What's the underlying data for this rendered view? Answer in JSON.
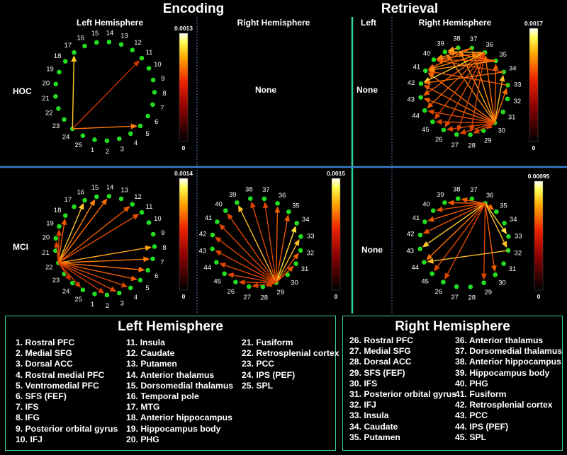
{
  "headers": {
    "encoding": "Encoding",
    "retrieval": "Retrieval"
  },
  "subheaders": {
    "enc_left": "Left Hemisphere",
    "enc_right": "Right Hemisphere",
    "ret_left": "Left",
    "ret_right": "Right Hemisphere"
  },
  "rows": {
    "hoc": "HOC",
    "mci": "MCI"
  },
  "none_label": "None",
  "colors": {
    "node": "#22dd22",
    "divider_v": "#2fd6a0",
    "divider_h": "#3a7fd0",
    "dotted": "#4a6aa0",
    "arrow_low": "#cc1100",
    "arrow_mid": "#ff6600",
    "arrow_high": "#ffee33"
  },
  "node_labels_left": [
    "1",
    "2",
    "3",
    "4",
    "5",
    "6",
    "7",
    "8",
    "9",
    "10",
    "11",
    "12",
    "13",
    "14",
    "15",
    "16",
    "17",
    "18",
    "19",
    "20",
    "21",
    "22",
    "23",
    "24",
    "25"
  ],
  "node_labels_right": [
    "26",
    "27",
    "28",
    "29",
    "30",
    "31",
    "32",
    "33",
    "34",
    "35",
    "36",
    "37",
    "38",
    "39",
    "40",
    "41",
    "42",
    "43",
    "44",
    "45"
  ],
  "colorbars": [
    {
      "max": "0.0013",
      "min": "0"
    },
    {
      "max": "0.0017",
      "min": "0"
    },
    {
      "max": "0.0014",
      "min": "0"
    },
    {
      "max": "0.0015",
      "min": "0"
    },
    {
      "max": "0.00095",
      "min": "0"
    }
  ],
  "connections": {
    "hoc_enc_left": [
      [
        24,
        17,
        0.85
      ],
      [
        24,
        11,
        0.2
      ],
      [
        24,
        5,
        0.55
      ]
    ],
    "hoc_ret_right": [
      [
        30,
        39,
        0.6
      ],
      [
        30,
        38,
        0.7
      ],
      [
        30,
        41,
        0.5
      ],
      [
        30,
        42,
        0.4
      ],
      [
        30,
        43,
        0.4
      ],
      [
        30,
        44,
        0.3
      ],
      [
        30,
        45,
        0.3
      ],
      [
        30,
        26,
        0.3
      ],
      [
        30,
        27,
        0.3
      ],
      [
        30,
        28,
        0.3
      ],
      [
        30,
        29,
        0.3
      ],
      [
        30,
        37,
        0.6
      ],
      [
        30,
        36,
        0.5
      ],
      [
        30,
        35,
        0.4
      ],
      [
        30,
        34,
        0.8
      ],
      [
        30,
        33,
        0.5
      ],
      [
        36,
        39,
        0.8
      ],
      [
        36,
        40,
        0.5
      ],
      [
        36,
        41,
        0.6
      ],
      [
        36,
        42,
        0.9
      ],
      [
        36,
        43,
        0.4
      ],
      [
        36,
        44,
        0.4
      ],
      [
        36,
        45,
        0.3
      ],
      [
        36,
        26,
        0.3
      ],
      [
        36,
        27,
        0.3
      ],
      [
        35,
        40,
        0.4
      ],
      [
        35,
        39,
        0.5
      ],
      [
        34,
        40,
        0.4
      ],
      [
        37,
        40,
        0.6
      ],
      [
        38,
        39,
        0.7
      ],
      [
        37,
        41,
        0.5
      ],
      [
        34,
        42,
        0.5
      ],
      [
        33,
        41,
        0.4
      ],
      [
        36,
        28,
        0.3
      ],
      [
        35,
        41,
        0.6
      ]
    ],
    "mci_enc_left": [
      [
        22,
        16,
        0.85
      ],
      [
        22,
        15,
        0.6
      ],
      [
        22,
        14,
        0.5
      ],
      [
        22,
        12,
        0.4
      ],
      [
        22,
        11,
        0.35
      ],
      [
        22,
        8,
        0.7
      ],
      [
        22,
        7,
        0.55
      ],
      [
        22,
        6,
        0.5
      ],
      [
        22,
        5,
        0.4
      ],
      [
        22,
        4,
        0.3
      ],
      [
        22,
        3,
        0.3
      ],
      [
        22,
        2,
        0.25
      ],
      [
        22,
        25,
        0.3
      ],
      [
        22,
        24,
        0.2
      ],
      [
        22,
        18,
        0.4
      ],
      [
        22,
        19,
        0.3
      ],
      [
        22,
        20,
        0.3
      ]
    ],
    "mci_enc_right": [
      [
        29,
        34,
        0.95
      ],
      [
        29,
        33,
        0.8
      ],
      [
        29,
        35,
        0.4
      ],
      [
        29,
        36,
        0.4
      ],
      [
        29,
        37,
        0.3
      ],
      [
        29,
        38,
        0.3
      ],
      [
        29,
        39,
        0.8
      ],
      [
        29,
        40,
        0.3
      ],
      [
        29,
        41,
        0.3
      ],
      [
        29,
        42,
        0.3
      ],
      [
        29,
        43,
        0.3
      ],
      [
        29,
        44,
        0.3
      ],
      [
        29,
        45,
        0.3
      ],
      [
        29,
        26,
        0.3
      ],
      [
        29,
        27,
        0.3
      ],
      [
        29,
        28,
        0.3
      ],
      [
        29,
        31,
        0.4
      ],
      [
        29,
        32,
        0.4
      ]
    ],
    "mci_ret_right": [
      [
        36,
        33,
        0.95
      ],
      [
        36,
        32,
        0.8
      ],
      [
        36,
        38,
        0.4
      ],
      [
        36,
        39,
        0.4
      ],
      [
        36,
        40,
        0.35
      ],
      [
        36,
        41,
        0.4
      ],
      [
        36,
        42,
        0.35
      ],
      [
        36,
        43,
        0.85
      ],
      [
        36,
        44,
        0.5
      ],
      [
        36,
        45,
        0.3
      ],
      [
        36,
        26,
        0.3
      ],
      [
        36,
        30,
        0.4
      ],
      [
        36,
        29,
        0.3
      ],
      [
        32,
        44,
        0.8
      ],
      [
        36,
        35,
        0.5
      ]
    ]
  },
  "legend_left": {
    "title": "Left Hemisphere",
    "col1": [
      "1.   Rostral PFC",
      "2.   Medial SFG",
      "3.   Dorsal ACC",
      "4.   Rostral medial PFC",
      "5.   Ventromedial PFC",
      "6.   SFS (FEF)",
      "7.   IFS",
      "8.   IFG",
      "9.   Posterior orbital gyrus",
      "10. IFJ"
    ],
    "col2": [
      "11. Insula",
      "12. Caudate",
      "13. Putamen",
      "14. Anterior thalamus",
      "15. Dorsomedial thalamus",
      "16. Temporal pole",
      "17. MTG",
      "18. Anterior hippocampus",
      "19. Hippocampus body",
      "20. PHG"
    ],
    "col3": [
      "21. Fusiform",
      "22. Retrosplenial cortex",
      "23. PCC",
      "24. IPS (PEF)",
      "25. SPL"
    ]
  },
  "legend_right": {
    "title": "Right Hemisphere",
    "col1": [
      "26. Rostral PFC",
      "27. Medial SFG",
      "28. Dorsal ACC",
      "29. SFS (FEF)",
      "30. IFS",
      "31. Posterior orbital gyrus",
      "32. IFJ",
      "33. Insula",
      "34. Caudate",
      "35. Putamen"
    ],
    "col2": [
      "36. Anterior thalamus",
      "37. Dorsomedial thalamus",
      "38. Anterior hippocampus",
      "39. Hippocampus body",
      "40. PHG",
      "41. Fusiform",
      "42. Retrosplenial cortex",
      "43. PCC",
      "44. IPS (PEF)",
      "45. SPL"
    ]
  }
}
